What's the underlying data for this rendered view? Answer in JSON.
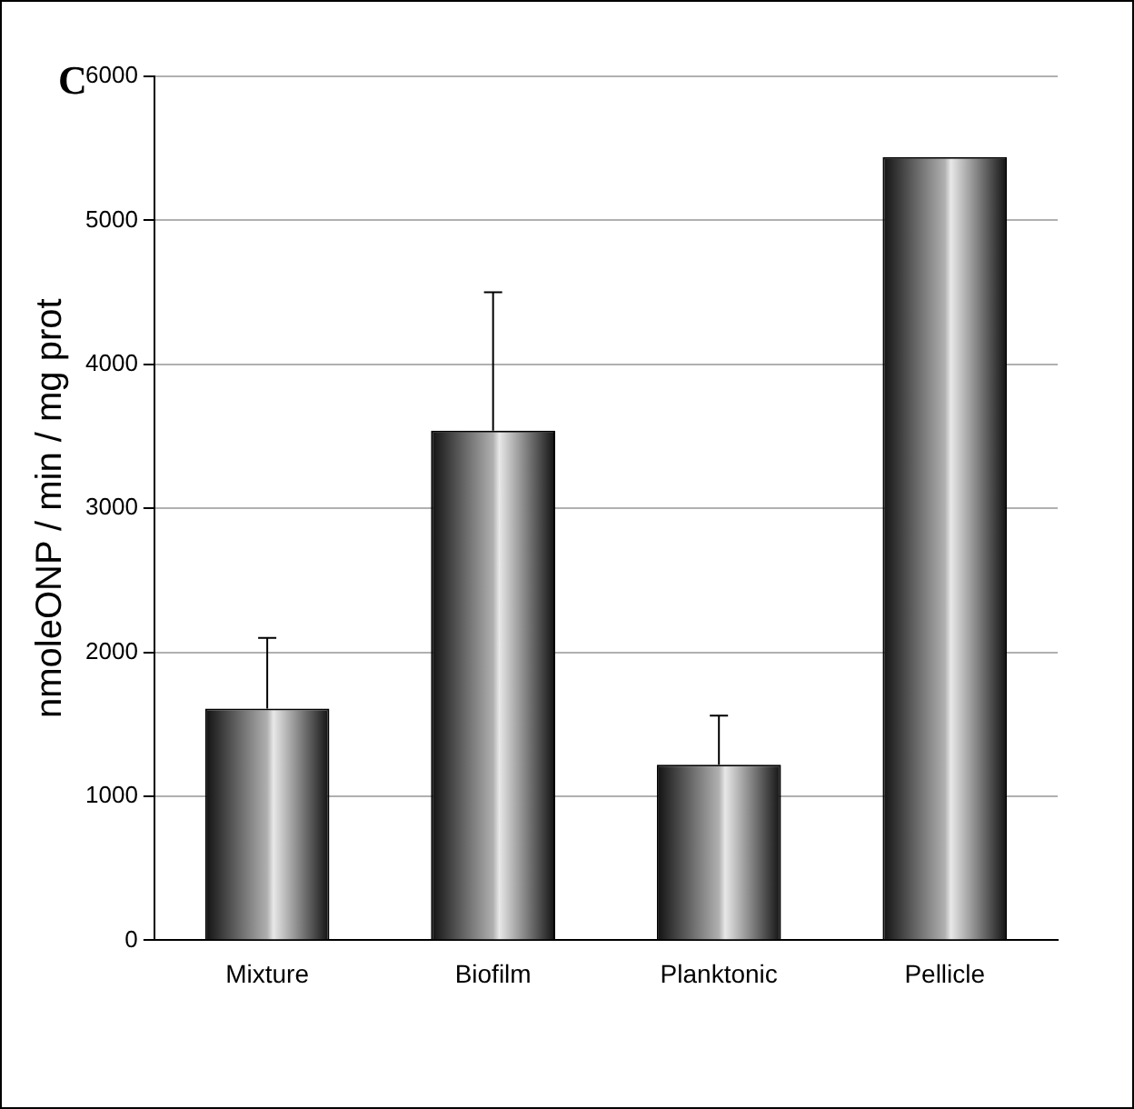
{
  "chart_data": {
    "type": "bar",
    "ylabel": "nmoleONP / min / mg prot",
    "annotations": [
      "C"
    ],
    "categories": [
      "Mixture",
      "Biofilm",
      "Planktonic",
      "Pellicle"
    ],
    "values": [
      1610,
      3540,
      1220,
      5440
    ],
    "errors": [
      [
        1610,
        2100
      ],
      [
        3540,
        4500
      ],
      [
        1220,
        1560
      ],
      null
    ],
    "color": "#b0b0b0",
    "ylim": [
      0,
      6000
    ],
    "yticks": [
      0,
      1000,
      2000,
      3000,
      4000,
      5000,
      6000
    ],
    "grid": "y",
    "legend": false
  }
}
